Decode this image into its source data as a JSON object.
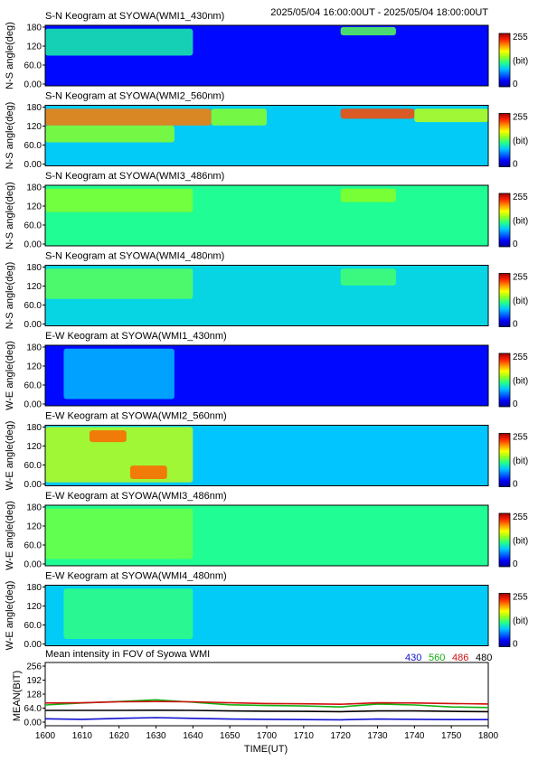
{
  "header": {
    "time_range": "2025/05/04 16:00:00UT - 2025/05/04 18:00:00UT"
  },
  "colorbar": {
    "max_label": "255",
    "unit_label": "(bit)",
    "min_label": "0",
    "colors": [
      "#00008f",
      "#0000ff",
      "#0060ff",
      "#00c8ff",
      "#20ff90",
      "#90ff20",
      "#ffff00",
      "#ff9000",
      "#ff2000",
      "#a00000"
    ]
  },
  "keograms": [
    {
      "title": "S-N Keogram at SYOWA(WMI1_430nm)",
      "ylabel": "N-S angle(deg)",
      "yticks": [
        "180",
        "120",
        "60.0",
        "0.00"
      ],
      "base_level": 0.12,
      "features": [
        {
          "t0": 1600,
          "t1": 1640,
          "a0": 90,
          "a1": 170,
          "level": 0.42
        },
        {
          "t0": 1720,
          "t1": 1735,
          "a0": 150,
          "a1": 175,
          "level": 0.5
        }
      ]
    },
    {
      "title": "S-N Keogram at SYOWA(WMI2_560nm)",
      "ylabel": "N-S angle(deg)",
      "yticks": [
        "180",
        "120",
        "60.0",
        "0.00"
      ],
      "base_level": 0.34,
      "features": [
        {
          "t0": 1600,
          "t1": 1645,
          "a0": 120,
          "a1": 170,
          "level": 0.8
        },
        {
          "t0": 1600,
          "t1": 1635,
          "a0": 70,
          "a1": 120,
          "level": 0.55
        },
        {
          "t0": 1645,
          "t1": 1700,
          "a0": 120,
          "a1": 170,
          "level": 0.55
        },
        {
          "t0": 1720,
          "t1": 1740,
          "a0": 140,
          "a1": 170,
          "level": 0.85
        },
        {
          "t0": 1740,
          "t1": 1800,
          "a0": 130,
          "a1": 170,
          "level": 0.6
        }
      ]
    },
    {
      "title": "S-N Keogram at SYOWA(WMI3_486nm)",
      "ylabel": "N-S angle(deg)",
      "yticks": [
        "180",
        "120",
        "60.0",
        "0.00"
      ],
      "base_level": 0.44,
      "features": [
        {
          "t0": 1600,
          "t1": 1640,
          "a0": 100,
          "a1": 170,
          "level": 0.54
        },
        {
          "t0": 1720,
          "t1": 1735,
          "a0": 130,
          "a1": 170,
          "level": 0.55
        }
      ]
    },
    {
      "title": "S-N Keogram at SYOWA(WMI4_480nm)",
      "ylabel": "N-S angle(deg)",
      "yticks": [
        "180",
        "120",
        "60.0",
        "0.00"
      ],
      "base_level": 0.36,
      "features": [
        {
          "t0": 1600,
          "t1": 1640,
          "a0": 80,
          "a1": 170,
          "level": 0.5
        },
        {
          "t0": 1720,
          "t1": 1735,
          "a0": 120,
          "a1": 170,
          "level": 0.48
        }
      ]
    },
    {
      "title": "E-W Keogram at SYOWA(WMI1_430nm)",
      "ylabel": "W-E angle(deg)",
      "yticks": [
        "180",
        "120",
        "60.0",
        "0.00"
      ],
      "base_level": 0.12,
      "features": [
        {
          "t0": 1605,
          "t1": 1635,
          "a0": 20,
          "a1": 170,
          "level": 0.32
        }
      ]
    },
    {
      "title": "E-W Keogram at SYOWA(WMI2_560nm)",
      "ylabel": "W-E angle(deg)",
      "yticks": [
        "180",
        "120",
        "60.0",
        "0.00"
      ],
      "base_level": 0.33,
      "features": [
        {
          "t0": 1600,
          "t1": 1640,
          "a0": 10,
          "a1": 175,
          "level": 0.6
        },
        {
          "t0": 1612,
          "t1": 1622,
          "a0": 130,
          "a1": 165,
          "level": 0.82
        },
        {
          "t0": 1623,
          "t1": 1633,
          "a0": 20,
          "a1": 60,
          "level": 0.82
        }
      ]
    },
    {
      "title": "E-W Keogram at SYOWA(WMI3_486nm)",
      "ylabel": "W-E angle(deg)",
      "yticks": [
        "180",
        "120",
        "60.0",
        "0.00"
      ],
      "base_level": 0.44,
      "features": [
        {
          "t0": 1600,
          "t1": 1640,
          "a0": 20,
          "a1": 170,
          "level": 0.52
        }
      ]
    },
    {
      "title": "E-W Keogram at SYOWA(WMI4_480nm)",
      "ylabel": "W-E angle(deg)",
      "yticks": [
        "180",
        "120",
        "60.0",
        "0.00"
      ],
      "base_level": 0.34,
      "features": [
        {
          "t0": 1605,
          "t1": 1640,
          "a0": 20,
          "a1": 170,
          "level": 0.46
        }
      ]
    }
  ],
  "chart_data": {
    "type": "line",
    "title": "Mean intensity in FOV of Syowa WMI",
    "xlabel": "TIME(UT)",
    "ylabel": "MEAN(BIT)",
    "xlim": [
      1600,
      1800
    ],
    "ylim": [
      0,
      256
    ],
    "x_ticks": [
      "1600",
      "1610",
      "1620",
      "1630",
      "1640",
      "1650",
      "1700",
      "1710",
      "1720",
      "1730",
      "1740",
      "1750",
      "1800"
    ],
    "y_ticks": [
      "256",
      "192",
      "128",
      "64.0",
      "0.00"
    ],
    "x": [
      1600,
      1610,
      1620,
      1630,
      1640,
      1650,
      1700,
      1710,
      1720,
      1730,
      1740,
      1750,
      1800
    ],
    "series": [
      {
        "name": "430",
        "color": "#1010d0",
        "values": [
          28,
          26,
          30,
          33,
          30,
          27,
          26,
          25,
          24,
          27,
          26,
          25,
          25
        ]
      },
      {
        "name": "560",
        "color": "#10b010",
        "values": [
          84,
          92,
          98,
          105,
          95,
          85,
          82,
          80,
          76,
          88,
          84,
          76,
          74
        ]
      },
      {
        "name": "486",
        "color": "#d01010",
        "values": [
          92,
          93,
          97,
          98,
          97,
          93,
          90,
          89,
          87,
          93,
          92,
          90,
          88
        ]
      },
      {
        "name": "480",
        "color": "#000000",
        "values": [
          62,
          62,
          62,
          63,
          62,
          60,
          59,
          58,
          57,
          60,
          60,
          58,
          57
        ]
      }
    ]
  }
}
